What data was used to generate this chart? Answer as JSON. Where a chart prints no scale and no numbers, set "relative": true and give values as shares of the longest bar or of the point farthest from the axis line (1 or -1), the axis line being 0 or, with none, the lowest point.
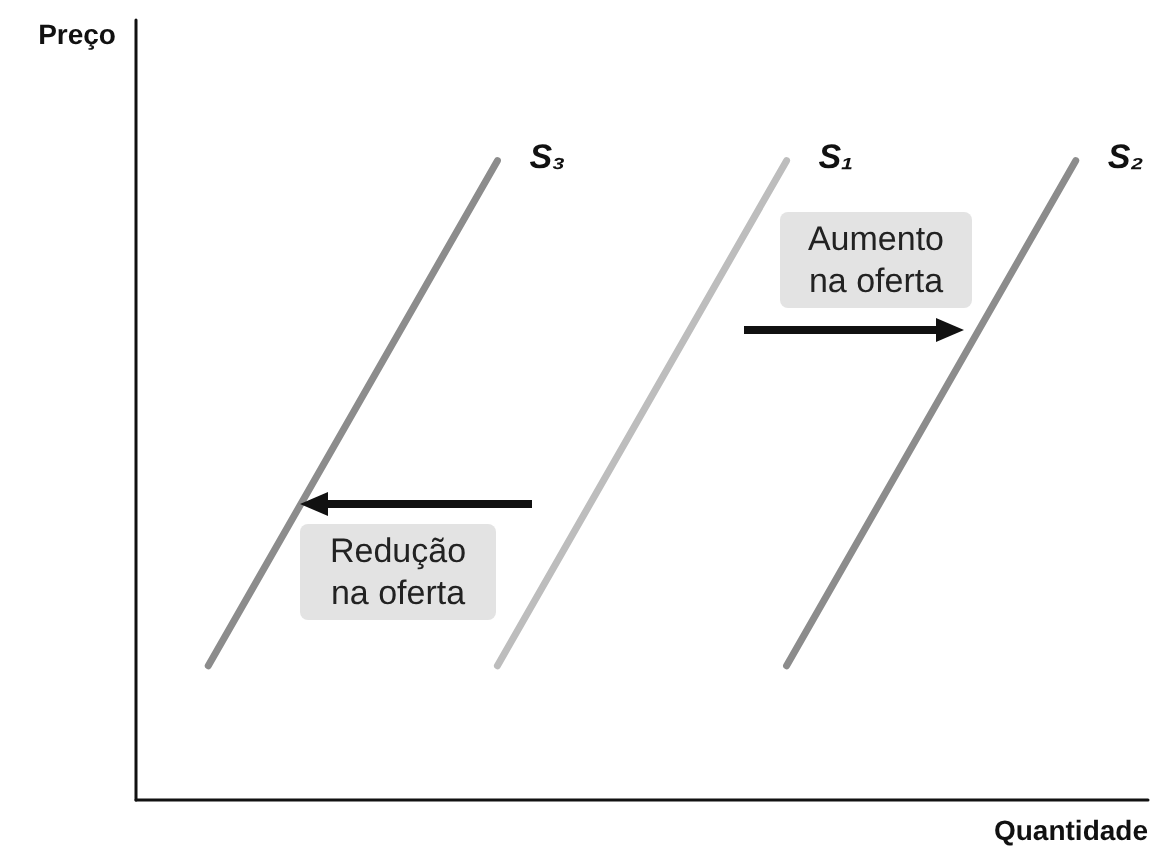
{
  "chart_data": {
    "type": "line",
    "relative": true,
    "xlabel": "Quantidade",
    "ylabel": "Preço",
    "categories": [
      null,
      null,
      null,
      null,
      null,
      null,
      null,
      null,
      null,
      null,
      null,
      null,
      null,
      null,
      null
    ],
    "grid": false,
    "legend": false,
    "marker": "none",
    "line_style": "solid",
    "series": [
      {
        "name": "S₃",
        "color": "#8c8c8c",
        "values": [
          null,
          0.21,
          null,
          null,
          null,
          1,
          null,
          null,
          null,
          null,
          null,
          null,
          null,
          null,
          null
        ]
      },
      {
        "name": "S₁",
        "color": "#bdbdbd",
        "values": [
          null,
          null,
          null,
          null,
          null,
          0.21,
          null,
          null,
          null,
          1,
          null,
          null,
          null,
          null,
          null
        ]
      },
      {
        "name": "S₂",
        "color": "#8c8c8c",
        "values": [
          null,
          null,
          null,
          null,
          null,
          null,
          null,
          null,
          null,
          0.21,
          null,
          null,
          null,
          1,
          null
        ]
      }
    ],
    "annotations": [
      "Aumento na oferta",
      "Redução na oferta"
    ]
  }
}
